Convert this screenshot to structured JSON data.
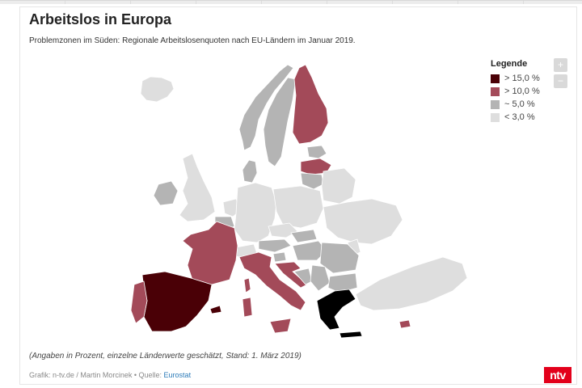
{
  "title": "Arbeitslos in Europa",
  "subtitle": "Problemzonen im Süden: Regionale Arbeitslosenquoten nach EU-Ländern im Januar 2019.",
  "legend": {
    "title": "Legende",
    "items": [
      {
        "label": "> 15,0 %",
        "color": "#4a0006"
      },
      {
        "label": "> 10,0 %",
        "color": "#a34a59"
      },
      {
        "label": "~ 5,0 %",
        "color": "#b4b4b4"
      },
      {
        "label": "< 3,0 %",
        "color": "#dedede"
      }
    ]
  },
  "zoom": {
    "in_label": "+",
    "out_label": "−"
  },
  "note": "(Angaben in Prozent, einzelne Länderwerte geschätzt, Stand: 1. März 2019)",
  "source": {
    "prefix": "Grafik: n-tv.de / Martin Morcinek • Quelle: ",
    "link_text": "Eurostat"
  },
  "logo_text": "ntv",
  "map_classes": {
    "gt15": [
      "Greece",
      "Spain"
    ],
    "gt10": [
      "France",
      "Italy",
      "Finland",
      "Latvia",
      "Portugal",
      "Croatia",
      "Cyprus"
    ],
    "approx5": [
      "Sweden",
      "Norway",
      "Ireland",
      "Estonia",
      "Lithuania",
      "Slovakia",
      "Hungary",
      "Serbia",
      "Bosnia",
      "Denmark",
      "Austria",
      "Slovenia",
      "Romania",
      "Bulgaria",
      "Belgium",
      "Luxembourg"
    ],
    "lt3": [
      "Germany",
      "Netherlands",
      "United Kingdom",
      "Poland",
      "Czechia",
      "Belarus",
      "Ukraine",
      "Moldova",
      "Switzerland",
      "Iceland",
      "Turkey"
    ]
  }
}
